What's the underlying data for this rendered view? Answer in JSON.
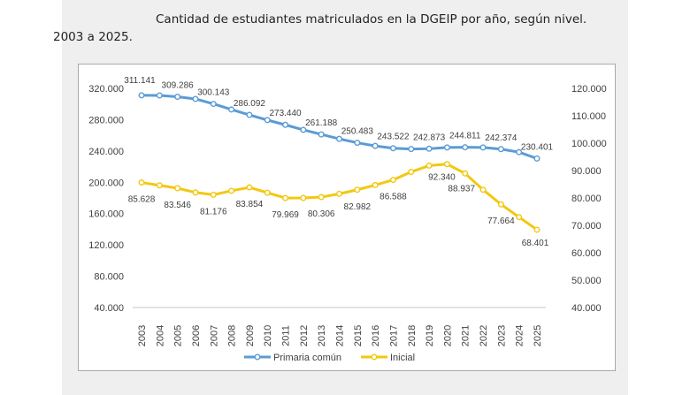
{
  "caption": {
    "line1": "Cantidad de estudiantes matriculados en la DGEIP por año, según nivel.",
    "line2": "2003 a 2025."
  },
  "colors": {
    "primaria": "#5b9bd5",
    "inicial": "#f2c811",
    "axis": "#d9d9d9"
  },
  "chart_data": {
    "type": "line",
    "title": "Cantidad de estudiantes matriculados en la DGEIP por año, según nivel. 2003 a 2025.",
    "xlabel": "",
    "ylabel": "",
    "x": [
      "2003",
      "2004",
      "2005",
      "2006",
      "2007",
      "2008",
      "2009",
      "2010",
      "2011",
      "2012",
      "2013",
      "2014",
      "2015",
      "2016",
      "2017",
      "2018",
      "2019",
      "2020",
      "2021",
      "2022",
      "2023",
      "2024",
      "2025"
    ],
    "y_left": {
      "range": [
        40000,
        320000
      ],
      "ticks": [
        "320.000",
        "280.000",
        "240.000",
        "200.000",
        "160.000",
        "120.000",
        "80.000",
        "40.000"
      ]
    },
    "y_right": {
      "range": [
        40000,
        120000
      ],
      "ticks": [
        "120.000",
        "110.000",
        "100.000",
        "90.000",
        "80.000",
        "70.000",
        "60.000",
        "50.000",
        "40.000"
      ]
    },
    "grid": false,
    "legend_position": "bottom",
    "series": [
      {
        "name": "Primaria común",
        "axis": "left",
        "values": [
          311141,
          311000,
          309286,
          306500,
          300143,
          293000,
          286092,
          279500,
          273440,
          267000,
          261188,
          255500,
          250483,
          246500,
          243522,
          242500,
          242873,
          244500,
          244811,
          244500,
          242374,
          238500,
          230401
        ],
        "labels": {
          "2003": "311.141",
          "2005": "309.286",
          "2007": "300.143",
          "2009": "286.092",
          "2011": "273.440",
          "2013": "261.188",
          "2015": "250.483",
          "2017": "243.522",
          "2019": "242.873",
          "2021": "244.811",
          "2023": "242.374",
          "2025": "230.401"
        }
      },
      {
        "name": "Inicial",
        "axis": "right",
        "values": [
          85628,
          84600,
          83546,
          82000,
          81176,
          82600,
          83854,
          81900,
          79969,
          80000,
          80306,
          81500,
          82982,
          84700,
          86588,
          89500,
          91800,
          92340,
          88937,
          83000,
          77664,
          73000,
          68401
        ],
        "labels": {
          "2003": "85.628",
          "2005": "83.546",
          "2007": "81.176",
          "2009": "83.854",
          "2011": "79.969",
          "2013": "80.306",
          "2015": "82.982",
          "2017": "86.588",
          "2020": "92.340",
          "2021": "88.937",
          "2023": "77.664",
          "2025": "68.401"
        }
      }
    ]
  }
}
